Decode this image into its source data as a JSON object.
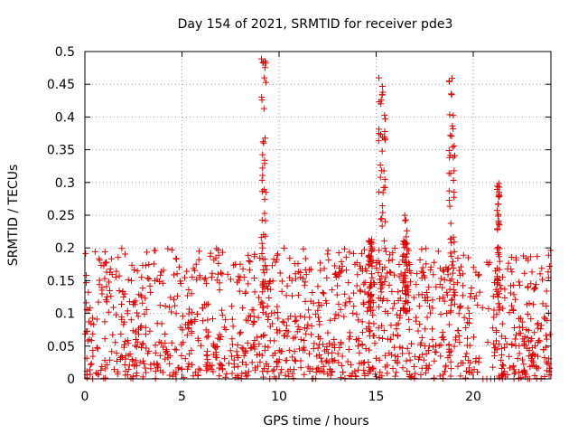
{
  "chart_data": {
    "type": "scatter",
    "title": "Day 154 of 2021, SRMTID for receiver pde3",
    "xlabel": "GPS time / hours",
    "ylabel": "SRMTID / TECUs",
    "xlim": [
      0,
      24
    ],
    "ylim": [
      0,
      0.5
    ],
    "x_ticks": [
      0,
      5,
      10,
      15,
      20
    ],
    "x_tick_labels": [
      "0",
      "5",
      "10",
      "15",
      "20"
    ],
    "y_ticks": [
      0,
      0.05,
      0.1,
      0.15,
      0.2,
      0.25,
      0.3,
      0.35,
      0.4,
      0.45,
      0.5
    ],
    "y_tick_labels": [
      "0",
      "0.05",
      "0.1",
      "0.15",
      "0.2",
      "0.25",
      "0.3",
      "0.35",
      "0.4",
      "0.45",
      "0.5"
    ],
    "grid": true,
    "marker": "plus",
    "color": "#e00000",
    "series": [
      {
        "name": "SRMTID",
        "points_approx_summary": "dense scatter of roughly 1500 points",
        "features": [
          {
            "x_range": [
              0,
              9
            ],
            "typical": [
              0,
              0.15
            ],
            "max": 0.2
          },
          {
            "x": 9.2,
            "peak": 0.5
          },
          {
            "x": 15.3,
            "peak": 0.46
          },
          {
            "x": 18.9,
            "peak": 0.46
          },
          {
            "x": 21.3,
            "peak": 0.3
          },
          {
            "x_range": [
              20.3,
              23
            ],
            "gap_low": 0
          }
        ]
      }
    ]
  }
}
